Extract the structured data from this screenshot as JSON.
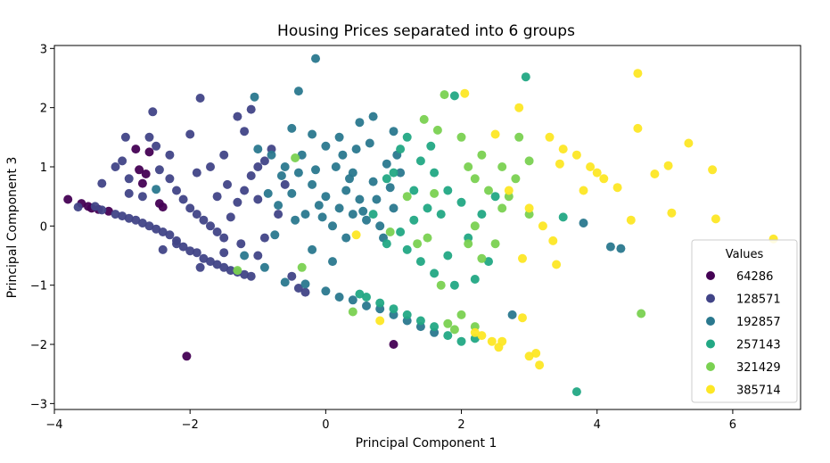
{
  "chart_data": {
    "type": "scatter",
    "title": "Housing Prices separated into 6 groups",
    "xlabel": "Principal Component 1",
    "ylabel": "Principal Component 3",
    "xlim": [
      -4.0,
      7.0
    ],
    "ylim": [
      -3.1,
      3.05
    ],
    "xticks": [
      -4,
      -2,
      0,
      2,
      4,
      6
    ],
    "yticks": [
      -3,
      -2,
      -1,
      0,
      1,
      2,
      3
    ],
    "xtick_labels": [
      "−4",
      "−2",
      "0",
      "2",
      "4",
      "6"
    ],
    "ytick_labels": [
      "−3",
      "−2",
      "−1",
      "0",
      "1",
      "2",
      "3"
    ],
    "grid": false,
    "legend": {
      "title": "Values",
      "placement": "lower right",
      "entries": [
        {
          "label": "64286",
          "color": "#440154"
        },
        {
          "label": "128571",
          "color": "#414487"
        },
        {
          "label": "192857",
          "color": "#2a788e"
        },
        {
          "label": "257143",
          "color": "#22a884"
        },
        {
          "label": "321429",
          "color": "#7ad151"
        },
        {
          "label": "385714",
          "color": "#fde725"
        }
      ]
    },
    "series": [
      {
        "name": "64286",
        "color": "#440154",
        "points": [
          [
            -3.8,
            0.45
          ],
          [
            -3.6,
            0.38
          ],
          [
            -3.5,
            0.33
          ],
          [
            -3.45,
            0.3
          ],
          [
            -3.35,
            0.28
          ],
          [
            -3.2,
            0.25
          ],
          [
            -2.8,
            1.3
          ],
          [
            -2.75,
            0.95
          ],
          [
            -2.7,
            0.72
          ],
          [
            -2.65,
            0.88
          ],
          [
            -2.6,
            1.25
          ],
          [
            -2.45,
            0.38
          ],
          [
            -2.4,
            0.32
          ],
          [
            -2.05,
            -2.2
          ],
          [
            1.0,
            -2.0
          ]
        ]
      },
      {
        "name": "128571",
        "color": "#414487",
        "points": [
          [
            -3.65,
            0.32
          ],
          [
            -3.4,
            0.33
          ],
          [
            -3.3,
            0.27
          ],
          [
            -3.1,
            0.2
          ],
          [
            -3.0,
            0.17
          ],
          [
            -2.9,
            0.13
          ],
          [
            -2.8,
            0.1
          ],
          [
            -2.7,
            0.05
          ],
          [
            -2.6,
            0.0
          ],
          [
            -2.5,
            -0.05
          ],
          [
            -2.4,
            -0.1
          ],
          [
            -2.3,
            -0.15
          ],
          [
            -2.2,
            -0.25
          ],
          [
            -2.1,
            -0.35
          ],
          [
            -2.0,
            -0.42
          ],
          [
            -1.9,
            -0.45
          ],
          [
            -1.8,
            -0.55
          ],
          [
            -1.7,
            -0.6
          ],
          [
            -1.6,
            -0.65
          ],
          [
            -1.5,
            -0.7
          ],
          [
            -1.4,
            -0.75
          ],
          [
            -1.3,
            -0.78
          ],
          [
            -1.2,
            -0.82
          ],
          [
            -1.1,
            -0.85
          ],
          [
            -3.1,
            1.0
          ],
          [
            -3.0,
            1.1
          ],
          [
            -2.9,
            0.8
          ],
          [
            -2.95,
            1.5
          ],
          [
            -2.6,
            1.5
          ],
          [
            -2.5,
            1.35
          ],
          [
            -2.55,
            1.93
          ],
          [
            -1.85,
            2.16
          ],
          [
            -2.0,
            1.55
          ],
          [
            -1.3,
            1.85
          ],
          [
            -1.2,
            1.6
          ],
          [
            -1.1,
            1.97
          ],
          [
            -2.3,
            0.8
          ],
          [
            -2.2,
            0.6
          ],
          [
            -2.1,
            0.45
          ],
          [
            -2.0,
            0.3
          ],
          [
            -1.9,
            0.2
          ],
          [
            -1.8,
            0.1
          ],
          [
            -1.7,
            0.0
          ],
          [
            -1.6,
            -0.1
          ],
          [
            -1.5,
            -0.2
          ],
          [
            -1.4,
            0.15
          ],
          [
            -1.3,
            0.4
          ],
          [
            -1.2,
            0.6
          ],
          [
            -1.1,
            0.85
          ],
          [
            -1.0,
            1.0
          ],
          [
            -0.9,
            1.1
          ],
          [
            -1.5,
            1.2
          ],
          [
            -1.7,
            1.0
          ],
          [
            -1.9,
            0.9
          ],
          [
            -0.8,
            1.3
          ],
          [
            -1.6,
            0.5
          ],
          [
            -1.45,
            0.7
          ],
          [
            -1.25,
            -0.3
          ],
          [
            -1.0,
            -0.5
          ],
          [
            -0.9,
            -0.2
          ],
          [
            -0.7,
            0.2
          ],
          [
            -0.6,
            0.7
          ],
          [
            -0.5,
            -0.85
          ],
          [
            -0.4,
            -1.05
          ],
          [
            -0.3,
            -1.12
          ],
          [
            -2.4,
            -0.4
          ],
          [
            -2.2,
            -0.3
          ],
          [
            -1.85,
            -0.7
          ],
          [
            -2.9,
            0.55
          ],
          [
            -1.5,
            -0.45
          ],
          [
            -2.3,
            1.2
          ],
          [
            -2.45,
            0.95
          ],
          [
            -2.7,
            0.5
          ],
          [
            -1.0,
            0.45
          ],
          [
            -3.3,
            0.72
          ]
        ]
      },
      {
        "name": "192857",
        "color": "#2a788e",
        "points": [
          [
            -0.15,
            2.83
          ],
          [
            -0.4,
            2.28
          ],
          [
            -1.05,
            2.18
          ],
          [
            -0.5,
            1.65
          ],
          [
            -0.2,
            1.55
          ],
          [
            0.0,
            1.35
          ],
          [
            0.2,
            1.5
          ],
          [
            0.5,
            1.75
          ],
          [
            0.7,
            1.85
          ],
          [
            1.0,
            1.6
          ],
          [
            -0.8,
            1.2
          ],
          [
            -0.6,
            1.0
          ],
          [
            -0.4,
            0.9
          ],
          [
            -0.2,
            0.7
          ],
          [
            0.0,
            0.5
          ],
          [
            0.2,
            0.3
          ],
          [
            0.4,
            0.2
          ],
          [
            0.6,
            0.1
          ],
          [
            0.8,
            0.0
          ],
          [
            1.0,
            0.3
          ],
          [
            -0.3,
            0.2
          ],
          [
            -0.1,
            0.35
          ],
          [
            0.1,
            0.0
          ],
          [
            0.3,
            -0.2
          ],
          [
            0.5,
            0.45
          ],
          [
            0.7,
            0.75
          ],
          [
            0.9,
            1.05
          ],
          [
            0.15,
            1.0
          ],
          [
            0.35,
            0.8
          ],
          [
            -0.5,
            0.55
          ],
          [
            -0.7,
            0.35
          ],
          [
            -0.9,
            -0.7
          ],
          [
            -0.6,
            -0.95
          ],
          [
            -0.3,
            -0.98
          ],
          [
            0.0,
            -1.1
          ],
          [
            0.2,
            -1.2
          ],
          [
            0.4,
            -1.25
          ],
          [
            0.6,
            -1.35
          ],
          [
            0.8,
            -1.4
          ],
          [
            1.0,
            -1.5
          ],
          [
            1.2,
            -1.6
          ],
          [
            1.4,
            -1.7
          ],
          [
            1.6,
            -1.8
          ],
          [
            -1.2,
            -0.5
          ],
          [
            -0.2,
            -0.4
          ],
          [
            0.1,
            -0.6
          ],
          [
            0.3,
            0.6
          ],
          [
            0.45,
            1.3
          ],
          [
            -0.65,
            0.85
          ],
          [
            -0.85,
            0.55
          ],
          [
            -1.0,
            1.3
          ],
          [
            -0.35,
            1.2
          ],
          [
            0.55,
            0.25
          ],
          [
            0.75,
            0.45
          ],
          [
            0.95,
            0.65
          ],
          [
            1.1,
            0.9
          ],
          [
            -0.15,
            0.95
          ],
          [
            -0.45,
            0.1
          ],
          [
            0.25,
            1.2
          ],
          [
            0.65,
            1.4
          ],
          [
            2.75,
            -1.5
          ],
          [
            4.2,
            -0.35
          ],
          [
            4.35,
            -0.38
          ],
          [
            3.8,
            0.05
          ],
          [
            -2.5,
            0.62
          ],
          [
            -0.05,
            0.15
          ],
          [
            0.85,
            -0.2
          ],
          [
            1.05,
            1.2
          ],
          [
            -0.75,
            -0.15
          ],
          [
            0.4,
            0.9
          ]
        ]
      },
      {
        "name": "257143",
        "color": "#22a884",
        "points": [
          [
            2.95,
            2.52
          ],
          [
            1.9,
            2.2
          ],
          [
            1.2,
            1.5
          ],
          [
            1.1,
            1.3
          ],
          [
            0.9,
            0.8
          ],
          [
            1.4,
            1.1
          ],
          [
            1.6,
            0.9
          ],
          [
            1.8,
            0.6
          ],
          [
            2.0,
            0.4
          ],
          [
            1.5,
            0.3
          ],
          [
            1.3,
            0.1
          ],
          [
            1.1,
            -0.1
          ],
          [
            0.9,
            -0.3
          ],
          [
            1.2,
            -0.4
          ],
          [
            1.4,
            -0.6
          ],
          [
            1.6,
            -0.8
          ],
          [
            1.8,
            -0.5
          ],
          [
            2.1,
            -0.2
          ],
          [
            2.3,
            0.2
          ],
          [
            2.5,
            0.5
          ],
          [
            1.0,
            -1.4
          ],
          [
            1.2,
            -1.5
          ],
          [
            1.4,
            -1.6
          ],
          [
            1.6,
            -1.7
          ],
          [
            1.8,
            -1.85
          ],
          [
            2.0,
            -1.95
          ],
          [
            2.2,
            -1.9
          ],
          [
            0.6,
            -1.2
          ],
          [
            0.8,
            -1.3
          ],
          [
            1.3,
            0.6
          ],
          [
            1.7,
            0.2
          ],
          [
            2.4,
            -0.6
          ],
          [
            2.2,
            -0.9
          ],
          [
            3.7,
            -2.8
          ],
          [
            3.5,
            0.15
          ],
          [
            0.5,
            -1.15
          ],
          [
            0.7,
            0.2
          ],
          [
            1.9,
            -1.0
          ],
          [
            1.0,
            0.9
          ],
          [
            1.55,
            1.35
          ]
        ]
      },
      {
        "name": "321429",
        "color": "#7ad151",
        "points": [
          [
            1.75,
            2.22
          ],
          [
            1.65,
            1.62
          ],
          [
            2.0,
            1.5
          ],
          [
            2.3,
            1.2
          ],
          [
            2.6,
            1.0
          ],
          [
            2.8,
            0.8
          ],
          [
            3.0,
            1.1
          ],
          [
            2.2,
            0.8
          ],
          [
            2.4,
            0.6
          ],
          [
            2.6,
            0.3
          ],
          [
            2.1,
            -0.3
          ],
          [
            2.3,
            -0.55
          ],
          [
            2.5,
            -0.3
          ],
          [
            1.2,
            0.5
          ],
          [
            1.5,
            -0.2
          ],
          [
            1.7,
            -1.0
          ],
          [
            2.0,
            -1.5
          ],
          [
            2.2,
            -1.7
          ],
          [
            1.8,
            -1.65
          ],
          [
            1.9,
            -1.75
          ],
          [
            4.65,
            -1.48
          ],
          [
            1.35,
            -0.3
          ],
          [
            2.7,
            0.5
          ],
          [
            3.0,
            0.2
          ],
          [
            1.6,
            0.55
          ],
          [
            -0.45,
            1.15
          ],
          [
            -1.3,
            -0.75
          ],
          [
            0.4,
            -1.45
          ],
          [
            -0.35,
            -0.7
          ],
          [
            2.1,
            1.0
          ],
          [
            0.95,
            -0.1
          ],
          [
            2.85,
            1.5
          ],
          [
            1.45,
            1.8
          ],
          [
            2.2,
            0.0
          ]
        ]
      },
      {
        "name": "385714",
        "color": "#fde725",
        "points": [
          [
            4.6,
            2.58
          ],
          [
            2.05,
            2.24
          ],
          [
            2.85,
            2.0
          ],
          [
            3.3,
            1.5
          ],
          [
            3.5,
            1.3
          ],
          [
            3.7,
            1.2
          ],
          [
            3.9,
            1.0
          ],
          [
            4.1,
            0.8
          ],
          [
            4.3,
            0.65
          ],
          [
            4.6,
            1.65
          ],
          [
            5.05,
            1.02
          ],
          [
            5.35,
            1.4
          ],
          [
            5.7,
            0.95
          ],
          [
            5.1,
            0.22
          ],
          [
            5.75,
            0.12
          ],
          [
            6.6,
            -0.22
          ],
          [
            2.7,
            0.6
          ],
          [
            3.0,
            0.3
          ],
          [
            3.2,
            0.0
          ],
          [
            3.35,
            -0.25
          ],
          [
            3.4,
            -0.65
          ],
          [
            2.9,
            -0.55
          ],
          [
            2.9,
            -1.55
          ],
          [
            2.3,
            -1.85
          ],
          [
            2.45,
            -1.95
          ],
          [
            2.55,
            -2.05
          ],
          [
            2.6,
            -1.95
          ],
          [
            3.0,
            -2.2
          ],
          [
            3.15,
            -2.35
          ],
          [
            3.1,
            -2.15
          ],
          [
            4.5,
            0.1
          ],
          [
            4.85,
            0.88
          ],
          [
            2.5,
            1.55
          ],
          [
            3.8,
            0.6
          ],
          [
            2.2,
            -1.8
          ],
          [
            0.8,
            -1.6
          ],
          [
            0.45,
            -0.15
          ],
          [
            3.45,
            1.05
          ],
          [
            4.0,
            0.9
          ]
        ]
      }
    ]
  }
}
